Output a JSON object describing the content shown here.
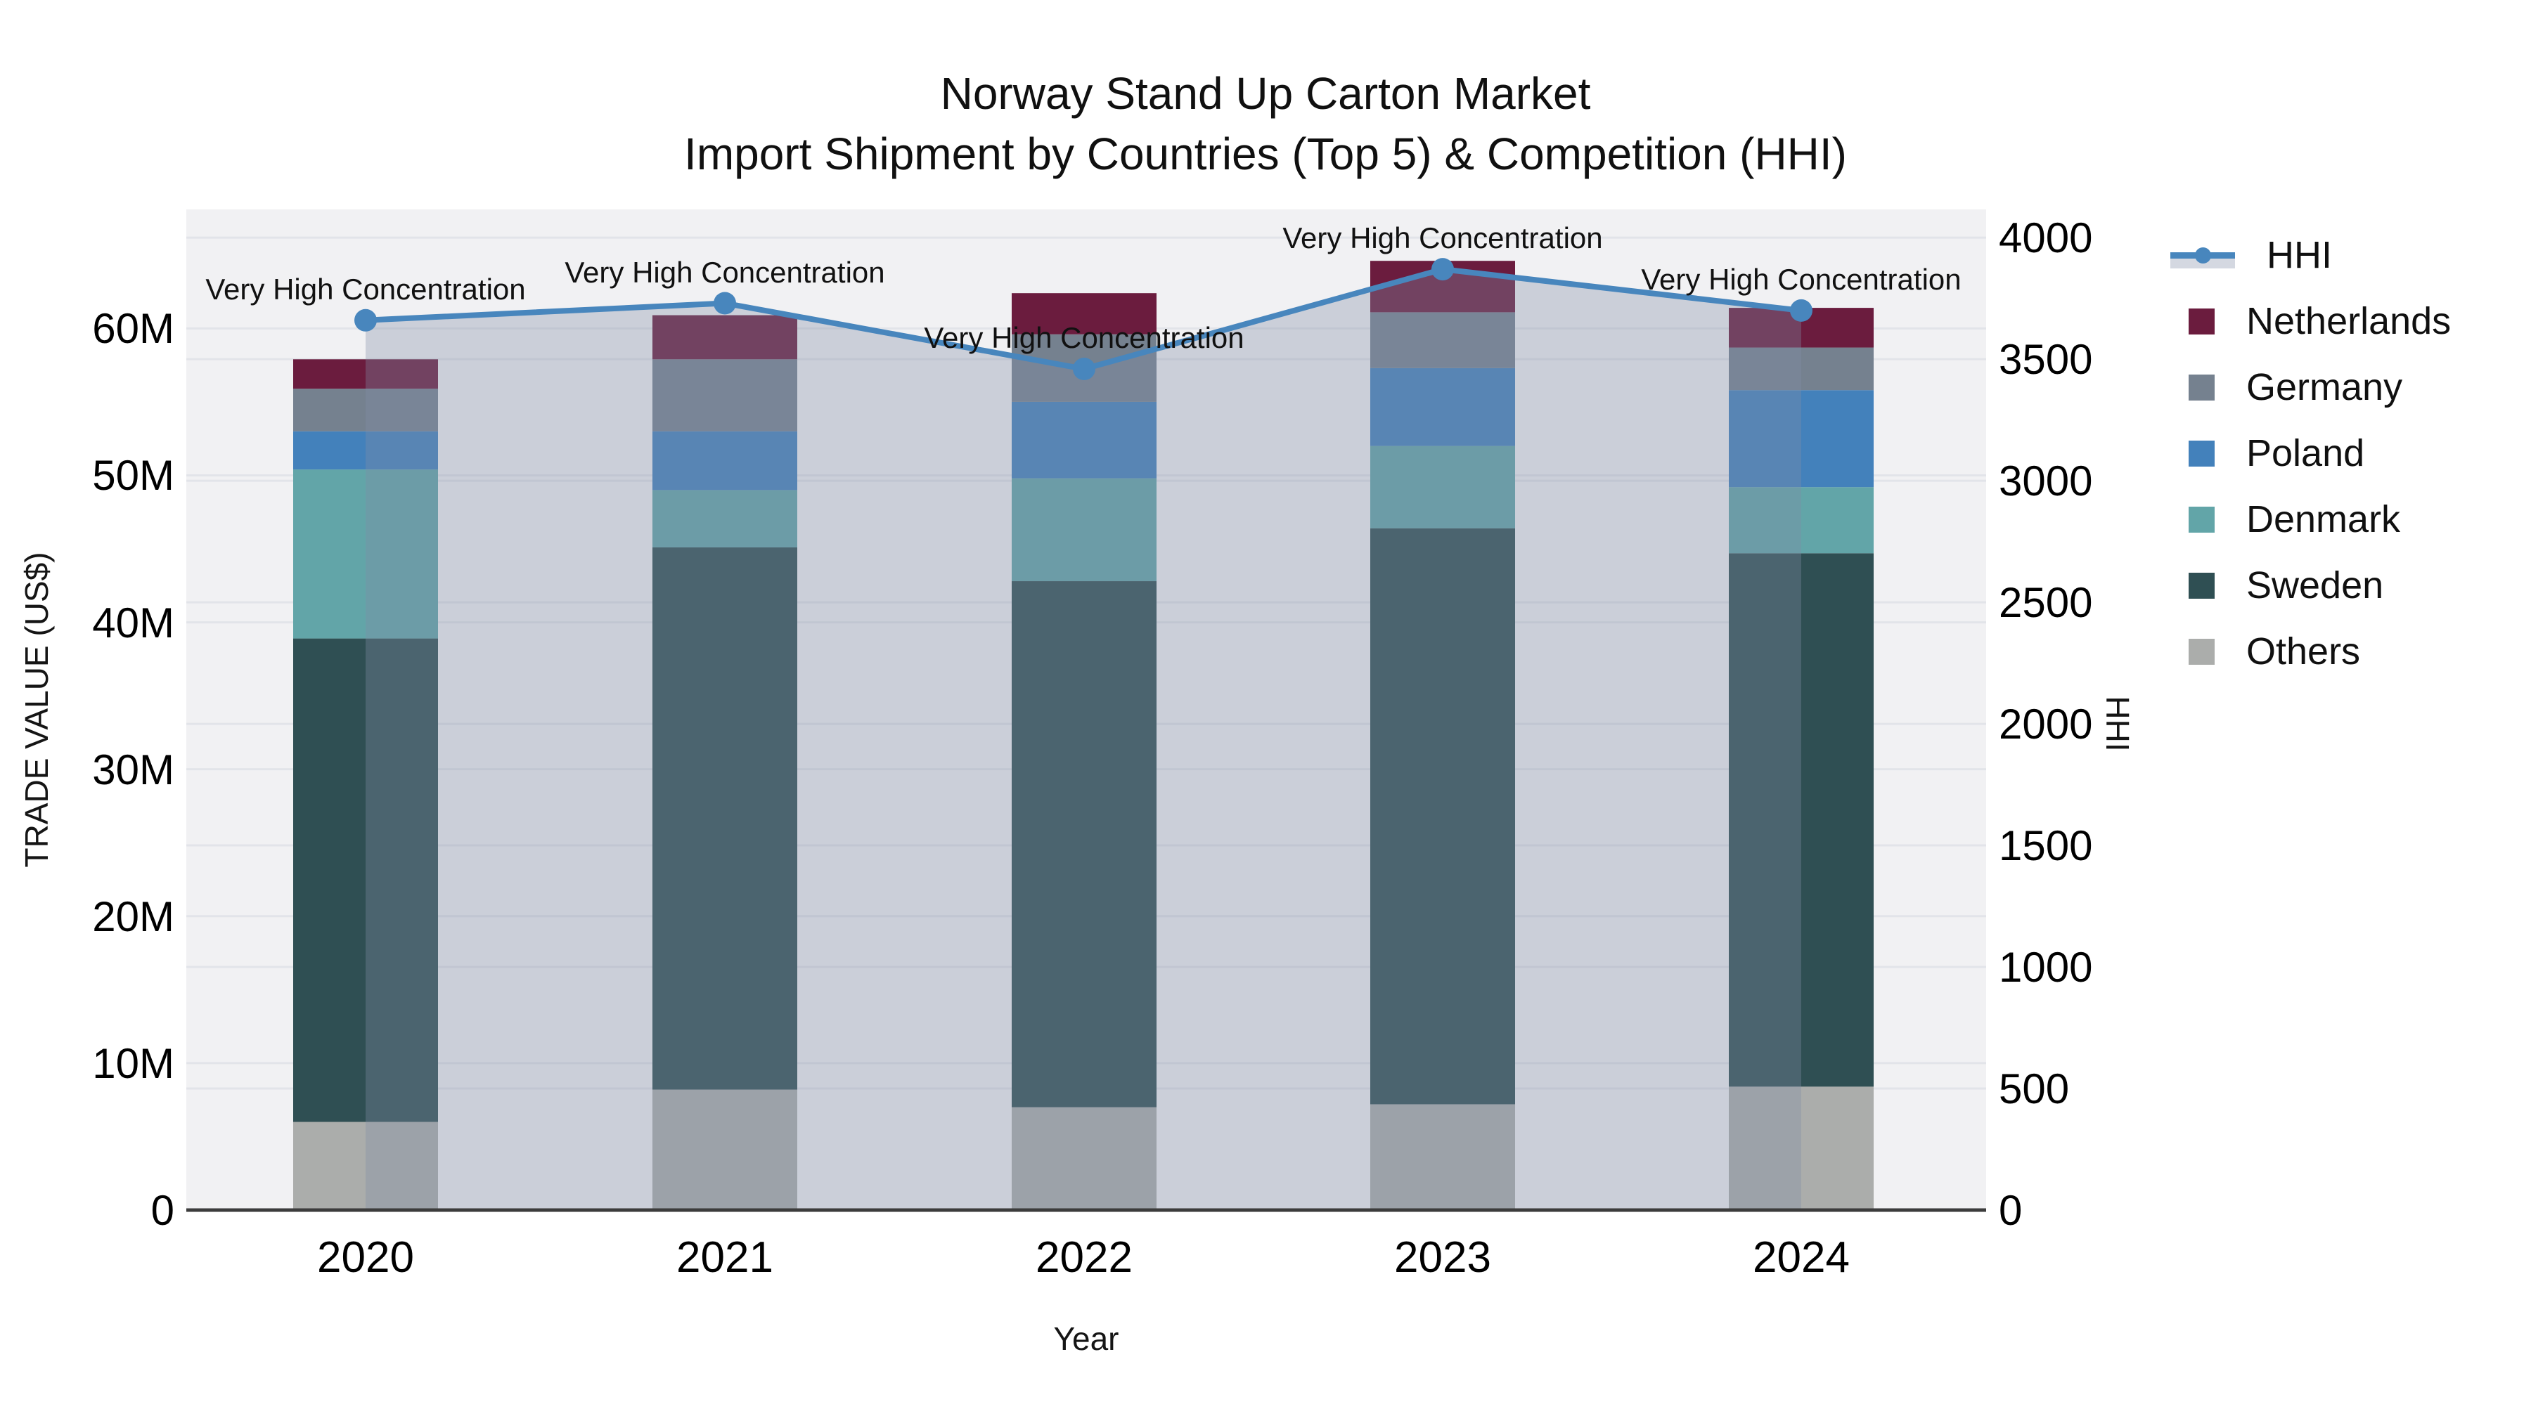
{
  "title": {
    "line1": "Norway Stand Up Carton Market",
    "line2": "Import Shipment by Countries (Top 5) & Competition (HHI)"
  },
  "chart_data": {
    "type": "stacked_bar_with_line",
    "title": "Norway Stand Up Carton Market",
    "subtitle": "Import Shipment by Countries (Top 5) & Competition (HHI)",
    "categories": [
      "2020",
      "2021",
      "2022",
      "2023",
      "2024"
    ],
    "value_unit": "million US$",
    "series": [
      {
        "name": "Others",
        "color": "#ABADAB",
        "values": [
          6.0,
          8.2,
          7.0,
          7.2,
          8.4
        ]
      },
      {
        "name": "Sweden",
        "color": "#2F4F53",
        "values": [
          32.9,
          36.9,
          35.8,
          39.2,
          36.3
        ]
      },
      {
        "name": "Denmark",
        "color": "#62A5A8",
        "values": [
          11.5,
          3.9,
          7.0,
          5.6,
          4.5
        ]
      },
      {
        "name": "Poland",
        "color": "#4381BB",
        "values": [
          2.6,
          4.0,
          5.2,
          5.3,
          6.6
        ]
      },
      {
        "name": "Germany",
        "color": "#75818F",
        "values": [
          2.9,
          4.9,
          4.6,
          3.8,
          2.9
        ]
      },
      {
        "name": "Netherlands",
        "color": "#6B1C3E",
        "values": [
          2.0,
          3.0,
          2.8,
          3.5,
          2.7
        ]
      }
    ],
    "stack_order": "bottom-to-top",
    "bar_totals": [
      57.9,
      60.9,
      62.4,
      64.6,
      61.4
    ],
    "line_series": {
      "name": "HHI",
      "color": "#4886BD",
      "area_fill_color": "rgba(128,140,166,0.34)",
      "values": [
        3660,
        3730,
        3460,
        3870,
        3700
      ],
      "point_annotation": "Very High Concentration"
    },
    "xlabel": "Year",
    "ylabel_left": "TRADE VALUE (US$)",
    "ylabel_right": "HHI",
    "y_left": {
      "ticks": [
        0,
        10,
        20,
        30,
        40,
        50,
        60
      ],
      "tick_labels": [
        "0",
        "10M",
        "20M",
        "30M",
        "40M",
        "50M",
        "60M"
      ],
      "axis_max": 68.1
    },
    "y_right": {
      "ticks": [
        0,
        500,
        1000,
        1500,
        2000,
        2500,
        3000,
        3500,
        4000
      ],
      "tick_labels": [
        "0",
        "500",
        "1000",
        "1500",
        "2000",
        "2500",
        "3000",
        "3500",
        "4000"
      ],
      "axis_max": 4116
    },
    "grid": true,
    "plot_bg_color": "#F1F1F3",
    "grid_color": "#E2E4E9",
    "axis_line_color": "#3C3C3C",
    "legend_position": "right"
  },
  "legend": {
    "items": [
      {
        "label": "HHI"
      },
      {
        "label": "Netherlands"
      },
      {
        "label": "Germany"
      },
      {
        "label": "Poland"
      },
      {
        "label": "Denmark"
      },
      {
        "label": "Sweden"
      },
      {
        "label": "Others"
      }
    ]
  }
}
